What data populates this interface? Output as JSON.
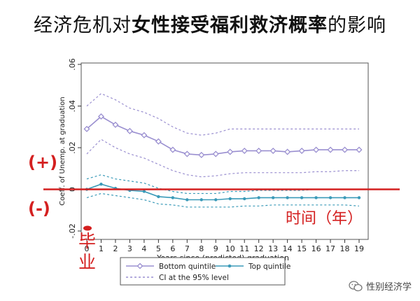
{
  "title": {
    "part1": "经济危机对",
    "part2": "女性接受福利救济概率",
    "part3": "的影响"
  },
  "annotations": {
    "plus": "(+)",
    "minus": "(-)",
    "time": "时间（年）",
    "graduation": "毕业"
  },
  "watermark": {
    "text": "性别经济学",
    "icon": "wechat-logo-icon"
  },
  "colors": {
    "bottom": "#9a8fd0",
    "top": "#3a9ab8",
    "zeroline": "#d42020",
    "axis": "#333333"
  },
  "chart_data": {
    "type": "line",
    "xlabel": "Years since (predicted) graduation",
    "ylabel": "Coeff. of Unemp. at graduation",
    "x": [
      0,
      1,
      2,
      3,
      4,
      5,
      6,
      7,
      8,
      9,
      10,
      11,
      12,
      13,
      14,
      15,
      16,
      17,
      18,
      19
    ],
    "xlim": [
      0,
      19
    ],
    "ylim": [
      -0.02,
      0.06
    ],
    "yticks": [
      -0.02,
      0,
      0.02,
      0.04,
      0.06
    ],
    "ytick_labels": [
      "-.02",
      "0",
      ".02",
      ".04",
      ".06"
    ],
    "grid": false,
    "legend_position": "bottom",
    "series": [
      {
        "name": "Bottom quintile",
        "style": "solid-diamond",
        "values": [
          0.029,
          0.035,
          0.031,
          0.028,
          0.026,
          0.023,
          0.019,
          0.017,
          0.0165,
          0.017,
          0.018,
          0.0185,
          0.0185,
          0.0185,
          0.018,
          0.0185,
          0.019,
          0.019,
          0.019,
          0.019
        ]
      },
      {
        "name": "Bottom quintile CI upper",
        "style": "dashed",
        "values": [
          0.04,
          0.046,
          0.043,
          0.039,
          0.037,
          0.034,
          0.03,
          0.027,
          0.026,
          0.027,
          0.029,
          0.029,
          0.029,
          0.029,
          0.029,
          0.029,
          0.029,
          0.029,
          0.029,
          0.029
        ]
      },
      {
        "name": "Bottom quintile CI lower",
        "style": "dashed",
        "values": [
          0.017,
          0.024,
          0.02,
          0.017,
          0.015,
          0.012,
          0.009,
          0.007,
          0.006,
          0.0065,
          0.0075,
          0.008,
          0.008,
          0.008,
          0.008,
          0.008,
          0.0085,
          0.0085,
          0.009,
          0.009
        ]
      },
      {
        "name": "Top quintile",
        "style": "solid-dot",
        "values": [
          0.0,
          0.0025,
          0.0005,
          -0.0005,
          -0.001,
          -0.0035,
          -0.004,
          -0.005,
          -0.005,
          -0.005,
          -0.0045,
          -0.0045,
          -0.004,
          -0.004,
          -0.004,
          -0.004,
          -0.004,
          -0.004,
          -0.004,
          -0.004
        ]
      },
      {
        "name": "Top quintile CI upper",
        "style": "dashed",
        "values": [
          0.005,
          0.007,
          0.005,
          0.004,
          0.003,
          0.0005,
          -0.001,
          -0.002,
          -0.002,
          -0.002,
          -0.001,
          -0.001,
          -0.0005,
          -0.0005,
          -0.0005,
          -0.0005,
          0.0,
          0.0,
          0.0,
          0.0
        ]
      },
      {
        "name": "Top quintile CI lower",
        "style": "dashed",
        "values": [
          -0.004,
          -0.002,
          -0.003,
          -0.004,
          -0.005,
          -0.007,
          -0.0075,
          -0.0085,
          -0.0085,
          -0.0085,
          -0.0085,
          -0.008,
          -0.008,
          -0.0075,
          -0.0075,
          -0.0075,
          -0.0075,
          -0.0075,
          -0.0075,
          -0.008
        ]
      }
    ],
    "legend": [
      {
        "label": "Bottom quintile",
        "marker": "diamond",
        "line": "solid",
        "color": "#9a8fd0"
      },
      {
        "label": "Top quintile",
        "marker": "dot",
        "line": "solid",
        "color": "#3a9ab8"
      },
      {
        "label": "CI at the 95% level",
        "marker": "none",
        "line": "dashed",
        "color": "#9a8fd0"
      }
    ]
  }
}
